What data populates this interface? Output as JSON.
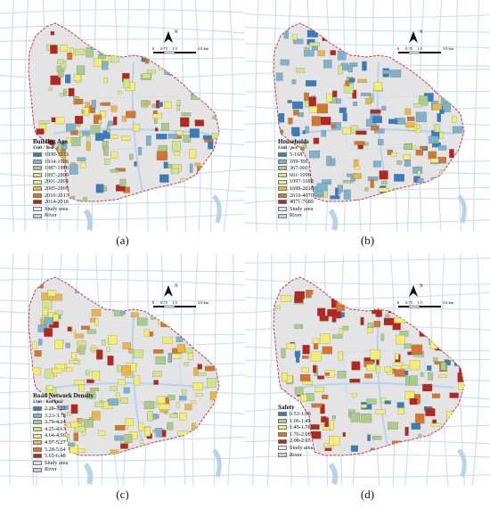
{
  "panels": [
    {
      "caption": "(a)",
      "legend_title": "Building Age",
      "legend_unit": "Unit / Year",
      "items": [
        {
          "label": "1930-1933",
          "color": "#3a7dbd"
        },
        {
          "label": "1934-1986",
          "color": "#7fb2cf"
        },
        {
          "label": "1987-1996",
          "color": "#a9cc8a"
        },
        {
          "label": "1997-2000",
          "color": "#d3e58c"
        },
        {
          "label": "2001-2004",
          "color": "#f3ee73"
        },
        {
          "label": "2005-2009",
          "color": "#eab64a"
        },
        {
          "label": "2010-2013",
          "color": "#d5762f"
        },
        {
          "label": "2014-2018",
          "color": "#b5261f"
        },
        {
          "label": "Study area",
          "color": "#ececec"
        },
        {
          "label": "River",
          "color": "#b8d2ee"
        }
      ],
      "palette": [
        "#3a7dbd",
        "#7fb2cf",
        "#a9cc8a",
        "#a9cc8a",
        "#d3e58c",
        "#f3ee73",
        "#f3ee73",
        "#eab64a",
        "#d5762f",
        "#b5261f",
        "#a9cc8a",
        "#d3e58c"
      ]
    },
    {
      "caption": "(b)",
      "legend_title": "Households",
      "legend_unit": "Unit / pce",
      "items": [
        {
          "label": "5-168",
          "color": "#3a7dbd"
        },
        {
          "label": "169-366",
          "color": "#7fb2cf"
        },
        {
          "label": "367-660",
          "color": "#a9cc8a"
        },
        {
          "label": "661-1096",
          "color": "#d3e58c"
        },
        {
          "label": "1097-1698",
          "color": "#f3ee73"
        },
        {
          "label": "1699-2618",
          "color": "#eab64a"
        },
        {
          "label": "2619-4070",
          "color": "#d5762f"
        },
        {
          "label": "4071-7689",
          "color": "#b5261f"
        },
        {
          "label": "Study area",
          "color": "#f2d9de"
        },
        {
          "label": "River",
          "color": "#b8d2ee"
        }
      ],
      "palette": [
        "#3a7dbd",
        "#3a7dbd",
        "#7fb2cf",
        "#7fb2cf",
        "#7fb2cf",
        "#a9cc8a",
        "#d3e58c",
        "#f3ee73",
        "#eab64a",
        "#d5762f",
        "#b5261f",
        "#7fb2cf"
      ]
    },
    {
      "caption": "(c)",
      "legend_title": "Road Network Density",
      "legend_unit": "Unit / Km/km2",
      "items": [
        {
          "label": "2.28-3.22",
          "color": "#3a7dbd"
        },
        {
          "label": "3.23-3.78",
          "color": "#7fb2cf"
        },
        {
          "label": "3.79-4.24",
          "color": "#a9cc8a"
        },
        {
          "label": "4.25-4.63",
          "color": "#d3e58c"
        },
        {
          "label": "4.64-4.96",
          "color": "#f3ee73"
        },
        {
          "label": "4.97-5.27",
          "color": "#eab64a"
        },
        {
          "label": "5.28-5.64",
          "color": "#d5762f"
        },
        {
          "label": "5.65-6.48",
          "color": "#b5261f"
        },
        {
          "label": "Study area",
          "color": "#f2d9de"
        },
        {
          "label": "River",
          "color": "#b8d2ee"
        }
      ],
      "palette": [
        "#f3ee73",
        "#f3ee73",
        "#d3e58c",
        "#f3ee73",
        "#eab64a",
        "#d3e58c",
        "#a9cc8a",
        "#f3ee73",
        "#d5762f",
        "#b5261f",
        "#eab64a",
        "#7fb2cf"
      ]
    },
    {
      "caption": "(d)",
      "legend_title": "Safety",
      "legend_unit": "",
      "items": [
        {
          "label": "0.53-1.06",
          "color": "#3a7dbd"
        },
        {
          "label": "1.06-1.45",
          "color": "#a9cc8a"
        },
        {
          "label": "1.45-1.76",
          "color": "#f3ee73"
        },
        {
          "label": "1.76-2.08",
          "color": "#d5762f"
        },
        {
          "label": "2.08-2.65",
          "color": "#b5261f"
        },
        {
          "label": "Study area",
          "color": "#ececec"
        },
        {
          "label": "River",
          "color": "#b8d2ee"
        }
      ],
      "palette": [
        "#a9cc8a",
        "#f3ee73",
        "#f3ee73",
        "#d5762f",
        "#b5261f",
        "#b5261f",
        "#a9cc8a",
        "#3a7dbd",
        "#d5762f",
        "#f3ee73",
        "#b5261f",
        "#a9cc8a"
      ]
    }
  ],
  "north_label": "N",
  "scale_labels": [
    "0",
    "0.75",
    "1.5",
    "3.0 km"
  ],
  "colors": {
    "boundary": "#c23a48",
    "study_area_fill": "#e4e4e4",
    "river": "#b8d2ee",
    "road": "#c9dcf2"
  }
}
